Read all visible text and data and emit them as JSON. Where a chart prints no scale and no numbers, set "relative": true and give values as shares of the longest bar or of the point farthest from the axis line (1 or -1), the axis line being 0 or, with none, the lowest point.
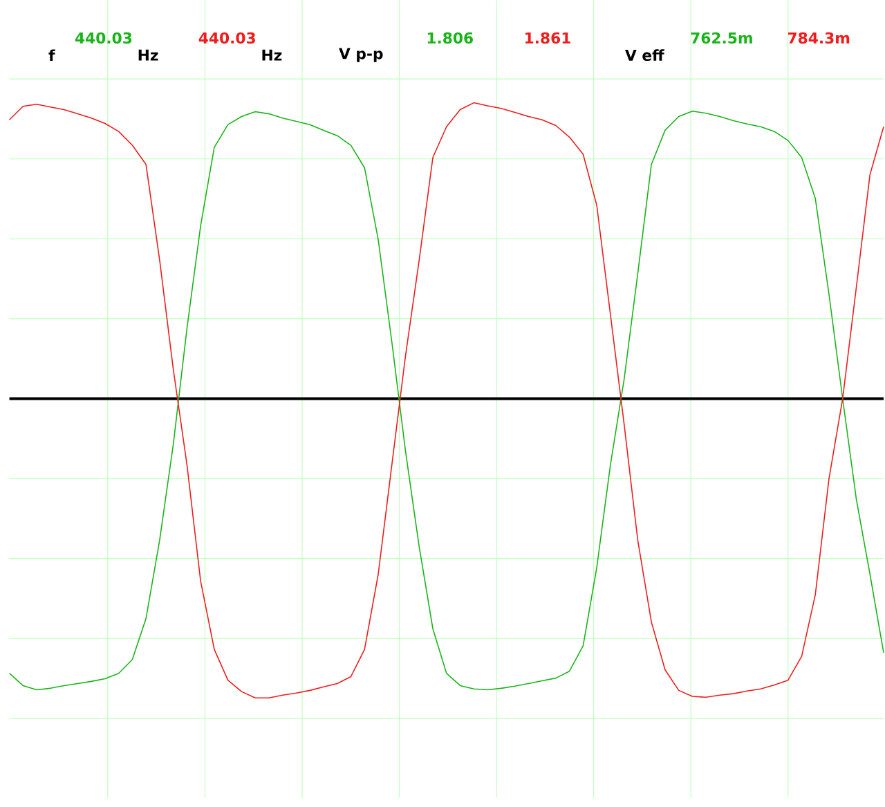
{
  "chart_data": {
    "type": "line",
    "relative": true,
    "grid": true,
    "tick_labels": false,
    "annotations": [
      "f",
      "440.03",
      "Hz",
      "440.03",
      "Hz",
      "V p-p",
      "1.806",
      "1.861",
      "V eff",
      "762.5m",
      "784.3m"
    ],
    "categories": [
      null,
      null,
      null,
      null,
      null,
      null,
      null,
      null,
      null,
      null,
      null,
      null,
      null,
      null,
      null,
      null,
      null,
      null,
      null,
      null,
      null,
      null,
      null,
      null,
      null,
      null,
      null,
      null,
      null,
      null,
      null,
      null,
      null,
      null,
      null,
      null,
      null,
      null,
      null,
      null,
      null,
      null,
      null,
      null,
      null,
      null,
      null,
      null,
      null,
      null,
      null,
      null,
      null,
      null,
      null,
      null,
      null,
      null,
      null,
      null,
      null,
      null,
      null,
      null,
      null
    ],
    "series": [
      {
        "color": "#19b419",
        "values": [
          -0.918,
          -0.959,
          -0.973,
          -0.968,
          -0.959,
          -0.952,
          -0.945,
          -0.936,
          -0.918,
          -0.872,
          -0.735,
          -0.473,
          -0.153,
          0.235,
          0.578,
          0.84,
          0.916,
          0.943,
          0.959,
          0.952,
          0.938,
          0.927,
          0.916,
          0.897,
          0.879,
          0.847,
          0.772,
          0.532,
          0.189,
          -0.176,
          -0.495,
          -0.769,
          -0.918,
          -0.959,
          -0.97,
          -0.973,
          -0.968,
          -0.961,
          -0.952,
          -0.943,
          -0.934,
          -0.911,
          -0.826,
          -0.564,
          -0.221,
          0.064,
          0.418,
          0.783,
          0.897,
          0.943,
          0.961,
          0.954,
          0.943,
          0.929,
          0.918,
          0.909,
          0.893,
          0.863,
          0.806,
          0.669,
          0.349,
          0,
          -0.336,
          -0.587,
          -0.849
        ]
      },
      {
        "color": "#ee1c1c",
        "values": [
          0.932,
          0.977,
          0.984,
          0.975,
          0.966,
          0.952,
          0.938,
          0.92,
          0.893,
          0.847,
          0.783,
          0.463,
          0.098,
          -0.221,
          -0.61,
          -0.838,
          -0.941,
          -0.979,
          -1.0,
          -1.0,
          -0.991,
          -0.984,
          -0.975,
          -0.963,
          -0.952,
          -0.929,
          -0.838,
          -0.587,
          -0.221,
          0.144,
          0.463,
          0.806,
          0.909,
          0.966,
          0.989,
          0.979,
          0.97,
          0.957,
          0.943,
          0.932,
          0.913,
          0.874,
          0.817,
          0.646,
          0.281,
          -0.084,
          -0.473,
          -0.747,
          -0.906,
          -0.975,
          -0.995,
          -0.998,
          -0.991,
          -0.986,
          -0.977,
          -0.97,
          -0.957,
          -0.941,
          -0.861,
          -0.655,
          -0.267,
          0,
          0.372,
          0.749,
          0.909
        ]
      }
    ]
  }
}
